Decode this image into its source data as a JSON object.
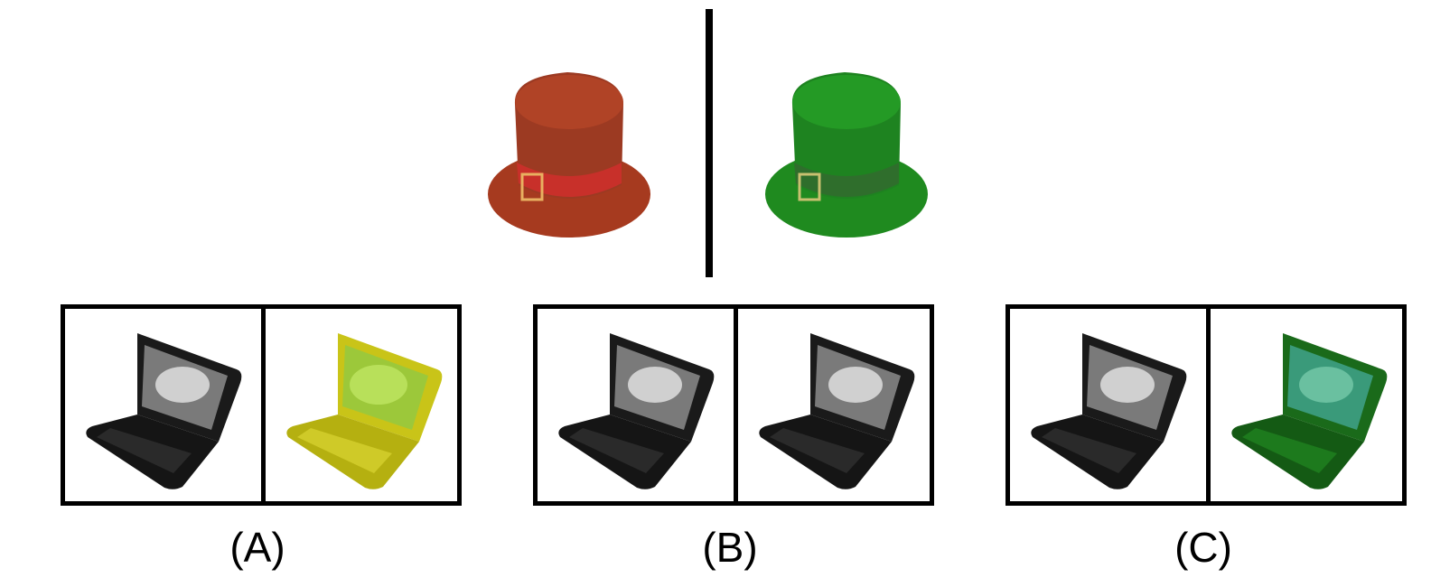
{
  "prompt": {
    "left_color": "#a63a1f",
    "right_color": "#1f8a1f",
    "left_icon": "top-hat-icon",
    "right_icon": "top-hat-icon"
  },
  "options": [
    {
      "label": "(A)",
      "left_tint": "#1a1a1a",
      "right_tint": "#c9c418"
    },
    {
      "label": "(B)",
      "left_tint": "#1a1a1a",
      "right_tint": "#1a1a1a"
    },
    {
      "label": "(C)",
      "left_tint": "#1a1a1a",
      "right_tint": "#1a6a1a"
    }
  ],
  "icons": {
    "object": "laptop-icon"
  }
}
